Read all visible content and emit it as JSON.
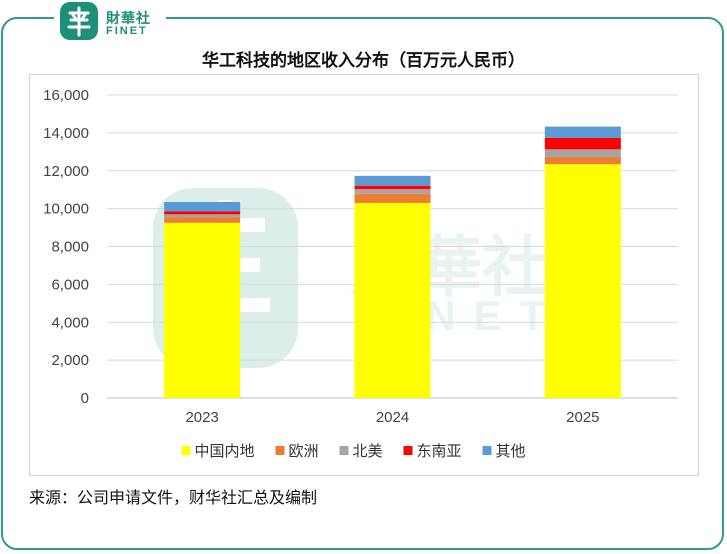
{
  "brand": {
    "name_cn": "財華社",
    "name_en": "FINET",
    "colors": {
      "brand": "#1e8f78"
    }
  },
  "source_note": "来源：公司申请文件，财华社汇总及编制",
  "chart_data": {
    "type": "bar",
    "stacked": true,
    "title": "华工科技的地区收入分布（百万元人民币）",
    "categories": [
      "2023",
      "2024",
      "2025"
    ],
    "series": [
      {
        "name": "中国内地",
        "color": "#ffff00",
        "values": [
          9250,
          10300,
          12350
        ]
      },
      {
        "name": "欧洲",
        "color": "#ed7d31",
        "values": [
          300,
          480,
          380
        ]
      },
      {
        "name": "北美",
        "color": "#a5a5a5",
        "values": [
          150,
          250,
          400
        ]
      },
      {
        "name": "东南亚",
        "color": "#ff0000",
        "values": [
          150,
          180,
          600
        ]
      },
      {
        "name": "其他",
        "color": "#5b9bd5",
        "values": [
          500,
          520,
          600
        ]
      }
    ],
    "ylim": [
      0,
      16000
    ],
    "yticks": [
      "0",
      "2,000",
      "4,000",
      "6,000",
      "8,000",
      "10,000",
      "12,000",
      "14,000",
      "16,000"
    ],
    "grid": true,
    "legend_position": "bottom"
  }
}
